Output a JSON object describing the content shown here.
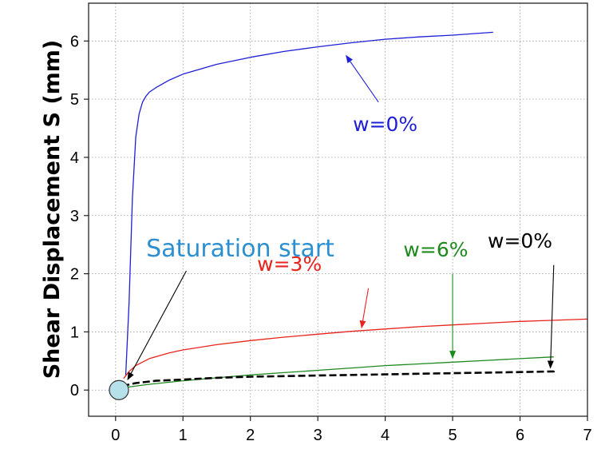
{
  "chart_data": {
    "type": "line",
    "ylabel": "Shear Displacement S (mm)",
    "xlabel": "",
    "xlim": [
      -0.4,
      7
    ],
    "ylim": [
      -0.45,
      6.65
    ],
    "xticks": [
      0,
      1,
      2,
      3,
      4,
      5,
      6,
      7
    ],
    "yticks": [
      0,
      1,
      2,
      3,
      4,
      5,
      6
    ],
    "grid": true,
    "series": [
      {
        "name": "w=0%",
        "color": "#1f1fd6",
        "style": "solid",
        "x": [
          0.15,
          0.2,
          0.25,
          0.3,
          0.35,
          0.4,
          0.45,
          0.5,
          0.6,
          0.8,
          1.0,
          1.5,
          2.0,
          2.5,
          3.0,
          3.5,
          4.0,
          4.5,
          5.0,
          5.6
        ],
        "y": [
          0.25,
          1.5,
          3.3,
          4.35,
          4.75,
          4.95,
          5.05,
          5.12,
          5.2,
          5.33,
          5.43,
          5.6,
          5.72,
          5.82,
          5.9,
          5.97,
          6.03,
          6.07,
          6.1,
          6.15
        ]
      },
      {
        "name": "w=3%",
        "color": "#e8221c",
        "style": "solid",
        "x": [
          0.12,
          0.2,
          0.3,
          0.5,
          0.8,
          1.0,
          1.5,
          2.0,
          2.5,
          3.0,
          3.5,
          4.0,
          4.5,
          5.0,
          5.5,
          6.0,
          6.5,
          7.0
        ],
        "y": [
          0.2,
          0.32,
          0.42,
          0.54,
          0.64,
          0.69,
          0.78,
          0.85,
          0.91,
          0.96,
          1.01,
          1.05,
          1.09,
          1.12,
          1.15,
          1.18,
          1.2,
          1.22
        ]
      },
      {
        "name": "w=6%",
        "color": "#1e8a1e",
        "style": "solid",
        "x": [
          0.05,
          0.5,
          1.0,
          1.5,
          2.0,
          2.5,
          3.0,
          3.5,
          4.0,
          4.5,
          5.0,
          5.5,
          6.0,
          6.5
        ],
        "y": [
          0.03,
          0.1,
          0.16,
          0.21,
          0.26,
          0.3,
          0.34,
          0.38,
          0.42,
          0.45,
          0.48,
          0.51,
          0.54,
          0.57
        ]
      },
      {
        "name": "w=0%",
        "color": "#000000",
        "style": "dashed",
        "x": [
          0.1,
          0.3,
          0.6,
          1.0,
          1.5,
          2.0,
          2.5,
          3.0,
          3.5,
          4.0,
          4.5,
          5.0,
          5.5,
          6.0,
          6.5,
          6.5
        ],
        "y": [
          0.07,
          0.12,
          0.16,
          0.18,
          0.21,
          0.23,
          0.24,
          0.25,
          0.26,
          0.27,
          0.28,
          0.29,
          0.3,
          0.31,
          0.32,
          0.38
        ]
      }
    ],
    "marker": {
      "x": 0.05,
      "y": 0.0,
      "fill": "#b6e0ea"
    },
    "annotations": [
      {
        "text": "w=0%",
        "color": "#1f1fd6",
        "x": 4.0,
        "y": 4.45,
        "arrow_from": [
          3.9,
          4.95
        ],
        "arrow_to": [
          3.42,
          5.75
        ]
      },
      {
        "text": "w=3%",
        "color": "#e8221c",
        "x": 2.58,
        "y": 2.05,
        "arrow_from": [
          3.75,
          1.75
        ],
        "arrow_to": [
          3.65,
          1.07
        ]
      },
      {
        "text": "w=6%",
        "color": "#1e8a1e",
        "x": 4.75,
        "y": 2.3,
        "arrow_from": [
          5.0,
          2.0
        ],
        "arrow_to": [
          5.0,
          0.55
        ]
      },
      {
        "text": "w=0%",
        "color": "#000000",
        "x": 6.0,
        "y": 2.45,
        "arrow_from": [
          6.5,
          2.15
        ],
        "arrow_to": [
          6.45,
          0.38
        ]
      },
      {
        "text": "Saturation start",
        "color": "#2c8fd0",
        "x": 1.85,
        "y": 2.3,
        "arrow_from": [
          1.05,
          2.05
        ],
        "arrow_to": [
          0.18,
          0.18
        ]
      }
    ]
  }
}
